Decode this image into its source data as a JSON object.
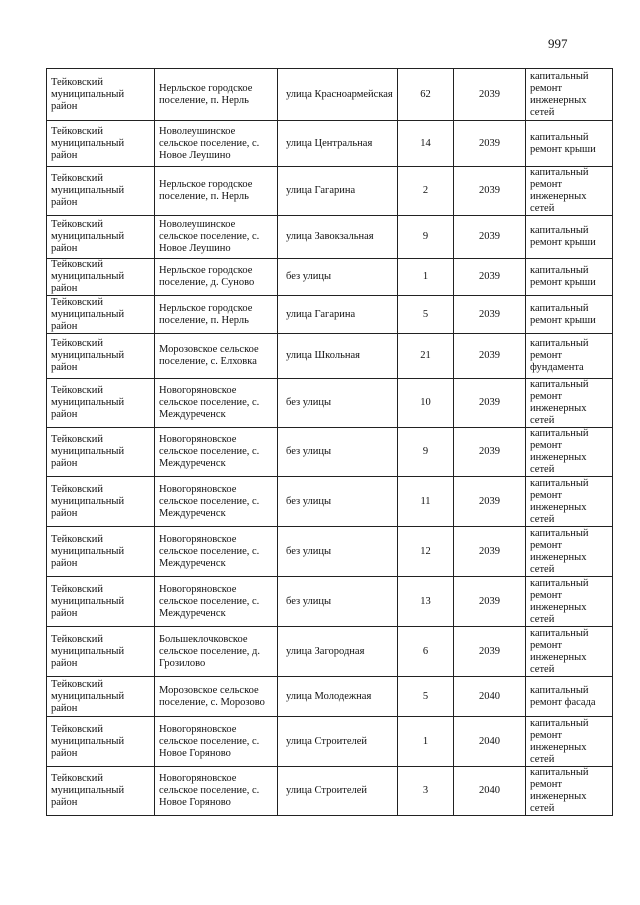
{
  "page_number": "997",
  "table": {
    "rows": [
      [
        "Тейковский муниципальный район",
        "Нерльское городское поселение, п. Нерль",
        "улица Красноармейская",
        "62",
        "2039",
        "капитальный ремонт инженерных сетей"
      ],
      [
        "Тейковский муниципальный район",
        "Новолеушинское сельское поселение, с. Новое Леушино",
        "улица Центральная",
        "14",
        "2039",
        "капитальный ремонт крыши"
      ],
      [
        "Тейковский муниципальный район",
        "Нерльское городское поселение, п. Нерль",
        "улица Гагарина",
        "2",
        "2039",
        "капитальный ремонт инженерных сетей"
      ],
      [
        "Тейковский муниципальный район",
        "Новолеушинское сельское поселение, с. Новое Леушино",
        "улица Завокзальная",
        "9",
        "2039",
        "капитальный ремонт крыши"
      ],
      [
        "Тейковский муниципальный район",
        "Нерльское городское поселение, д. Суново",
        "без улицы",
        "1",
        "2039",
        "капитальный ремонт крыши"
      ],
      [
        "Тейковский муниципальный район",
        "Нерльское городское поселение, п. Нерль",
        "улица Гагарина",
        "5",
        "2039",
        "капитальный ремонт крыши"
      ],
      [
        "Тейковский муниципальный район",
        "Морозовское сельское поселение, с. Елховка",
        "улица Школьная",
        "21",
        "2039",
        "капитальный ремонт фундамента"
      ],
      [
        "Тейковский муниципальный район",
        "Новогоряновское сельское поселение, с. Междуреченск",
        "без улицы",
        "10",
        "2039",
        "капитальный ремонт инженерных сетей"
      ],
      [
        "Тейковский муниципальный район",
        "Новогоряновское сельское поселение, с. Междуреченск",
        "без улицы",
        "9",
        "2039",
        "капитальный ремонт инженерных сетей"
      ],
      [
        "Тейковский муниципальный район",
        "Новогоряновское сельское поселение, с. Междуреченск",
        "без улицы",
        "11",
        "2039",
        "капитальный ремонт инженерных сетей"
      ],
      [
        "Тейковский муниципальный район",
        "Новогоряновское сельское поселение, с. Междуреченск",
        "без улицы",
        "12",
        "2039",
        "капитальный ремонт инженерных сетей"
      ],
      [
        "Тейковский муниципальный район",
        "Новогоряновское сельское поселение, с. Междуреченск",
        "без улицы",
        "13",
        "2039",
        "капитальный ремонт инженерных сетей"
      ],
      [
        "Тейковский муниципальный район",
        "Большеклочковское сельское поселение, д. Грозилово",
        "улица Загородная",
        "6",
        "2039",
        "капитальный ремонт инженерных сетей"
      ],
      [
        "Тейковский муниципальный район",
        "Морозовское сельское поселение, с. Морозово",
        "улица Молодежная",
        "5",
        "2040",
        "капитальный ремонт фасада"
      ],
      [
        "Тейковский муниципальный район",
        "Новогоряновское сельское поселение, с. Новое Горяново",
        "улица Строителей",
        "1",
        "2040",
        "капитальный ремонт инженерных сетей"
      ],
      [
        "Тейковский муниципальный район",
        "Новогоряновское сельское поселение, с. Новое Горяново",
        "улица Строителей",
        "3",
        "2040",
        "капитальный ремонт инженерных сетей"
      ]
    ]
  }
}
